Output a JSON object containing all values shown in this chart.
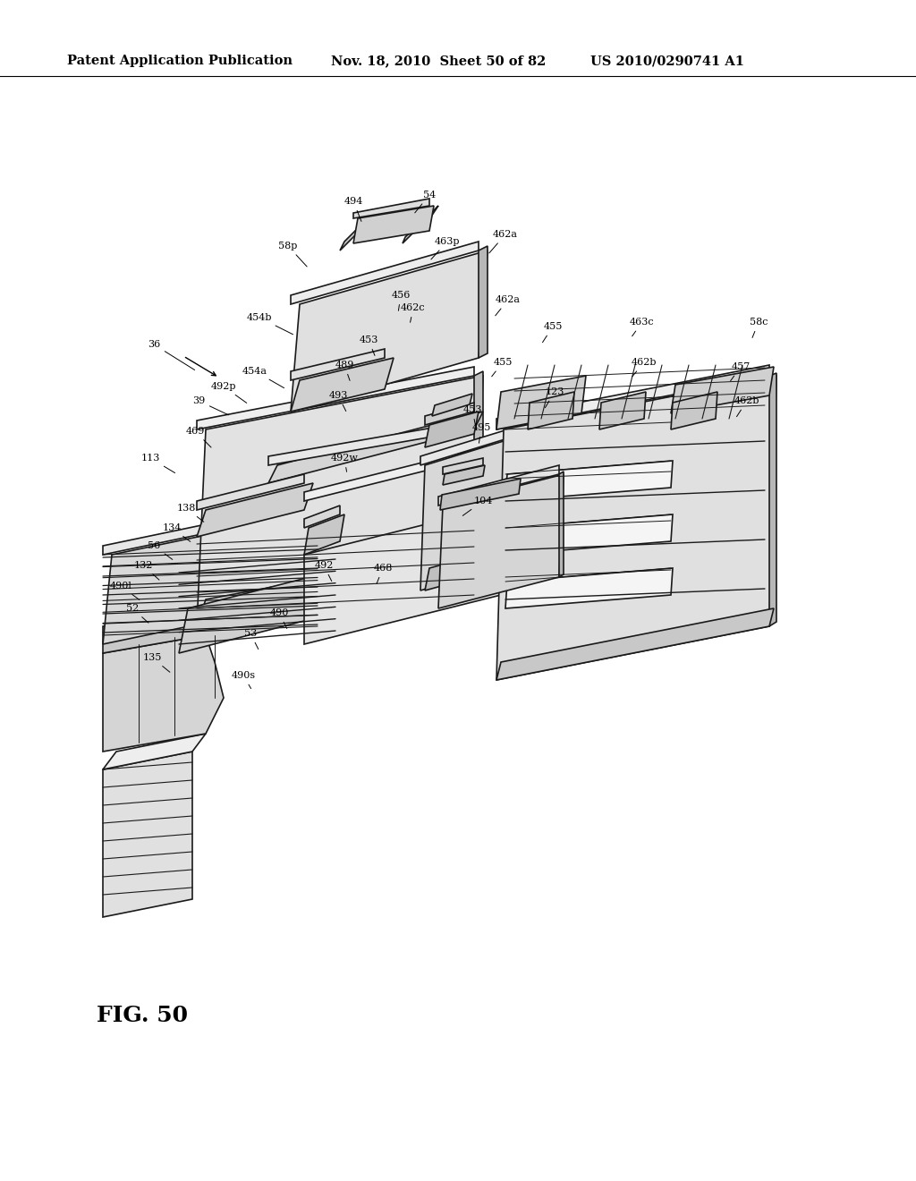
{
  "header_left": "Patent Application Publication",
  "header_mid": "Nov. 18, 2010  Sheet 50 of 82",
  "header_right": "US 2010/0290741 A1",
  "fig_label": "FIG. 50",
  "background_color": "#ffffff",
  "line_color": "#1a1a1a",
  "header_fontsize": 10.5,
  "fig_label_fontsize": 18
}
